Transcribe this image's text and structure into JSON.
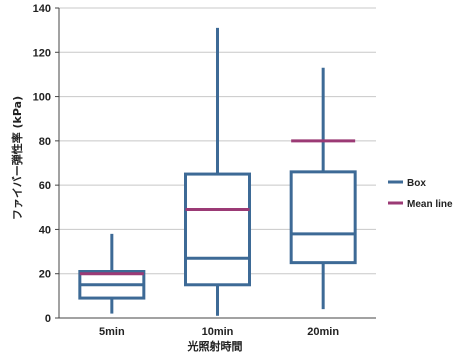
{
  "chart_data": {
    "type": "box",
    "title": "",
    "xlabel": "光照射時間",
    "ylabel": "ファイバー弾性率 (kPa)",
    "ylim": [
      0,
      140
    ],
    "yticks": [
      0,
      20,
      40,
      60,
      80,
      100,
      120,
      140
    ],
    "grid": true,
    "legend_position": "right",
    "categories": [
      "5min",
      "10min",
      "20min"
    ],
    "series": [
      {
        "name": "Box",
        "color": "#3d6a96",
        "boxes": [
          {
            "min": 2,
            "q1": 9,
            "median": 15,
            "q3": 21,
            "max": 38
          },
          {
            "min": 1,
            "q1": 15,
            "median": 27,
            "q3": 65,
            "max": 131
          },
          {
            "min": 4,
            "q1": 25,
            "median": 38,
            "q3": 66,
            "max": 113
          }
        ]
      },
      {
        "name": "Mean line",
        "color": "#9b3a75",
        "values": [
          20,
          49,
          80
        ]
      }
    ]
  }
}
